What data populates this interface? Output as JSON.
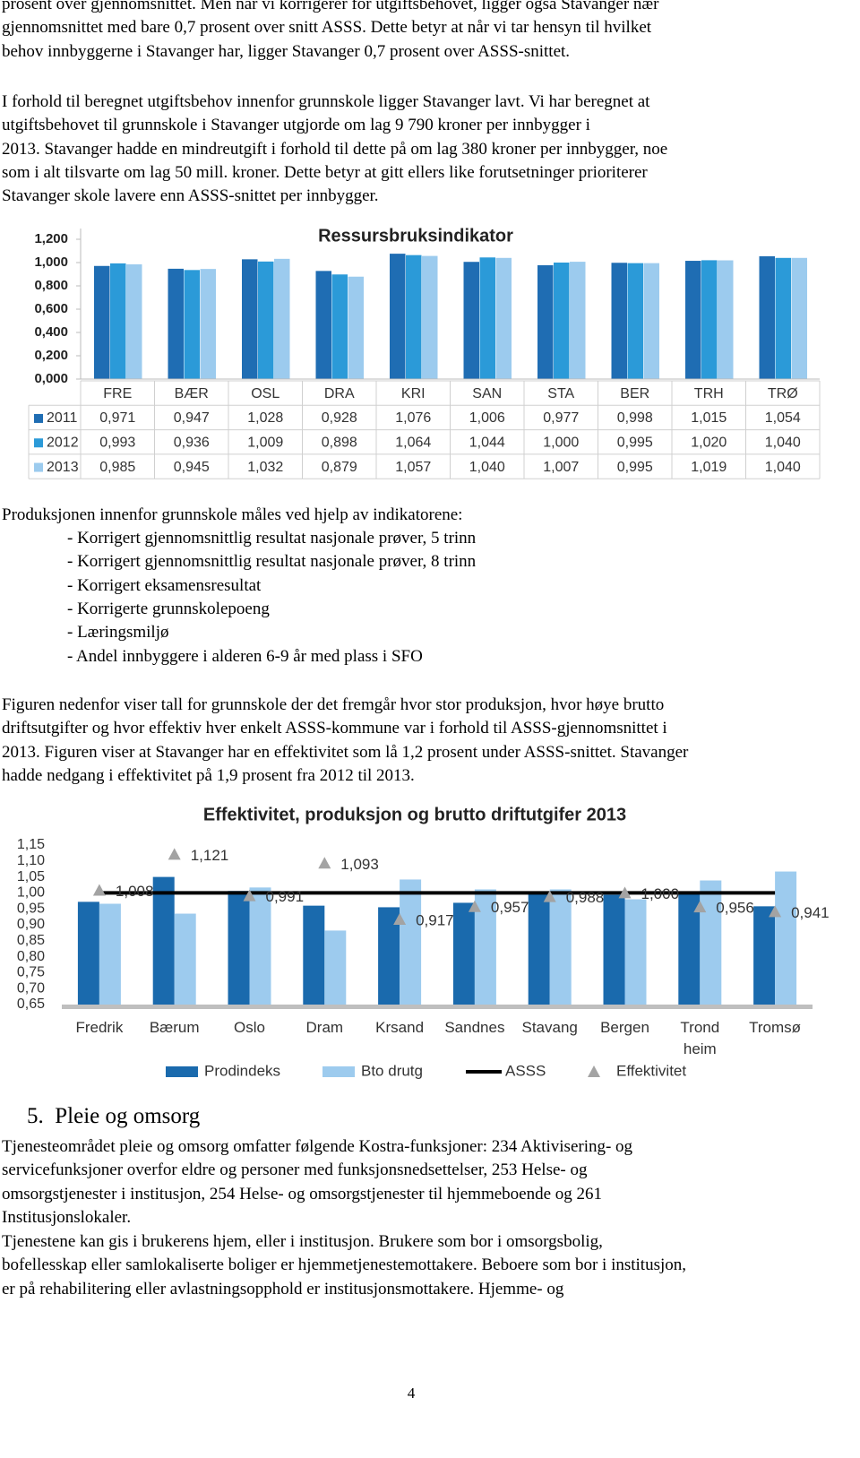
{
  "paragraphs": [
    {
      "lines": [
        "prosent over gjennomsnittet. Men når vi korrigerer for utgiftsbehovet, ligger også Stavanger nær",
        "gjennomsnittet med bare 0,7 prosent over snitt ASSS. Dette betyr at når vi tar hensyn til hvilket",
        "behov innbyggerne i Stavanger har, ligger Stavanger 0,7 prosent over ASSS-snittet."
      ]
    },
    {
      "lines": [
        "I forhold til beregnet utgiftsbehov innenfor grunnskole ligger Stavanger lavt. Vi har beregnet at",
        "utgiftsbehovet til grunnskole i Stavanger utgjorde om lag 9 790 kroner per innbygger i",
        "2013. Stavanger hadde en mindreutgift i forhold til dette på om lag 380 kroner per innbygger, noe",
        "som i alt tilsvarte om lag 50 mill. kroner. Dette betyr at gitt ellers like forutsetninger prioriterer",
        "Stavanger skole lavere enn ASSS-snittet per innbygger."
      ]
    },
    {
      "lines": [
        "Figuren nedenfor viser tall for grunnskole der det fremgår hvor stor produksjon, hvor høye brutto",
        "driftsutgifter og hvor effektiv hver enkelt ASSS-kommune var i forhold til ASSS-gjennomsnittet i",
        "2013. Figuren viser at Stavanger har en effektivitet som lå 1,2 prosent under ASSS-snittet. Stavanger",
        "hadde nedgang i effektivitet på 1,9 prosent fra 2012 til 2013."
      ]
    },
    {
      "lines": [
        "Tjenesteområdet pleie og omsorg omfatter følgende Kostra-funksjoner: 234 Aktivisering- og",
        "servicefunksjoner overfor eldre og personer med funksjonsnedsettelser, 253 Helse- og",
        "omsorgstjenester i institusjon, 254 Helse- og omsorgstjenester til hjemmeboende og 261",
        "Institusjonslokaler."
      ]
    },
    {
      "lines": [
        "Tjenestene kan gis i brukerens hjem, eller i institusjon. Brukere som bor i omsorgsbolig,",
        "bofellesskap eller samlokaliserte boliger er hjemmetjenestemottakere. Beboere som bor i institusjon,",
        "er på rehabilitering eller avlastningsopphold er institusjonsmottakere. Hjemme- og"
      ]
    }
  ],
  "indicator_list": {
    "intro": "Produksjonen innenfor grunnskole måles ved hjelp av indikatorene:",
    "items": [
      "- Korrigert gjennomsnittlig resultat nasjonale prøver, 5 trinn",
      "- Korrigert gjennomsnittlig resultat nasjonale prøver, 8 trinn",
      "- Korrigert eksamensresultat",
      "- Korrigerte grunnskolepoeng",
      "- Læringsmiljø",
      "- Andel innbyggere i alderen 6-9 år med plass i SFO"
    ]
  },
  "section_heading": {
    "number": "5.",
    "title": "Pleie og omsorg"
  },
  "page_number": "4",
  "chart_data": [
    {
      "type": "bar",
      "title": "Ressursbruksindikator",
      "data_table": true,
      "categories": [
        "FRE",
        "BÆR",
        "OSL",
        "DRA",
        "KRI",
        "SAN",
        "STA",
        "BER",
        "TRH",
        "TRØ"
      ],
      "ylim": [
        0,
        1.2
      ],
      "yticks": [
        {
          "value": 0,
          "label": "0,000"
        },
        {
          "value": 0.2,
          "label": "0,200"
        },
        {
          "value": 0.4,
          "label": "0,400"
        },
        {
          "value": 0.6,
          "label": "0,600"
        },
        {
          "value": 0.8,
          "label": "0,800"
        },
        {
          "value": 1.0,
          "label": "1,000"
        },
        {
          "value": 1.2,
          "label": "1,200"
        }
      ],
      "series": [
        {
          "name": "2011",
          "color": "#1f6db3",
          "values": [
            0.971,
            0.947,
            1.028,
            0.928,
            1.076,
            1.006,
            0.977,
            0.998,
            1.015,
            1.054
          ],
          "value_labels": [
            "0,971",
            "0,947",
            "1,028",
            "0,928",
            "1,076",
            "1,006",
            "0,977",
            "0,998",
            "1,015",
            "1,054"
          ]
        },
        {
          "name": "2012",
          "color": "#2b9ad8",
          "values": [
            0.993,
            0.936,
            1.009,
            0.898,
            1.064,
            1.044,
            1.0,
            0.995,
            1.02,
            1.04
          ],
          "value_labels": [
            "0,993",
            "0,936",
            "1,009",
            "0,898",
            "1,064",
            "1,044",
            "1,000",
            "0,995",
            "1,020",
            "1,040"
          ]
        },
        {
          "name": "2013",
          "color": "#9ccbee",
          "values": [
            0.985,
            0.945,
            1.032,
            0.879,
            1.057,
            1.04,
            1.007,
            0.995,
            1.019,
            1.04
          ],
          "value_labels": [
            "0,985",
            "0,945",
            "1,032",
            "0,879",
            "1,057",
            "1,040",
            "1,007",
            "0,995",
            "1,019",
            "1,040"
          ]
        }
      ]
    },
    {
      "type": "combo",
      "title": "Effektivitet, produksjon og brutto driftutgifer 2013",
      "categories": [
        "Fredrik",
        "Bærum",
        "Oslo",
        "Dram",
        "Krsand",
        "Sandnes",
        "Stavang",
        "Bergen",
        "Trond heim",
        "Tromsø"
      ],
      "ylim": [
        0.65,
        1.15
      ],
      "yticks": [
        {
          "value": 0.65,
          "label": "0,65"
        },
        {
          "value": 0.7,
          "label": "0,70"
        },
        {
          "value": 0.75,
          "label": "0,75"
        },
        {
          "value": 0.8,
          "label": "0,80"
        },
        {
          "value": 0.85,
          "label": "0,85"
        },
        {
          "value": 0.9,
          "label": "0,90"
        },
        {
          "value": 0.95,
          "label": "0,95"
        },
        {
          "value": 1.0,
          "label": "1,00"
        },
        {
          "value": 1.05,
          "label": "1,05"
        },
        {
          "value": 1.1,
          "label": "1,10"
        },
        {
          "value": 1.15,
          "label": "1,15"
        }
      ],
      "series": [
        {
          "name": "Prodindeks",
          "type": "bar",
          "color": "#1a6aad",
          "values": [
            0.972,
            1.05,
            1.006,
            0.96,
            0.955,
            0.969,
            1.0,
            0.994,
            1.0,
            0.958
          ]
        },
        {
          "name": "Bto drutg",
          "type": "bar",
          "color": "#9dcbee",
          "values": [
            0.966,
            0.935,
            1.017,
            0.882,
            1.042,
            1.011,
            1.011,
            0.98,
            1.039,
            1.067
          ]
        },
        {
          "name": "ASSS",
          "type": "line",
          "color": "#000000",
          "values": [
            1,
            1,
            1,
            1,
            1,
            1,
            1,
            1,
            1,
            1
          ]
        },
        {
          "name": "Effektivitet",
          "type": "scatter",
          "marker": "triangle",
          "color": "#a3a3a3",
          "values": [
            1.008,
            1.121,
            0.991,
            1.093,
            0.917,
            0.957,
            0.988,
            1.0,
            0.956,
            0.941
          ],
          "value_labels": [
            "1,008",
            "1,121",
            "0,991",
            "1,093",
            "0,917",
            "0,957",
            "0,988",
            "1,000",
            "0,956",
            "0,941"
          ]
        }
      ]
    }
  ]
}
